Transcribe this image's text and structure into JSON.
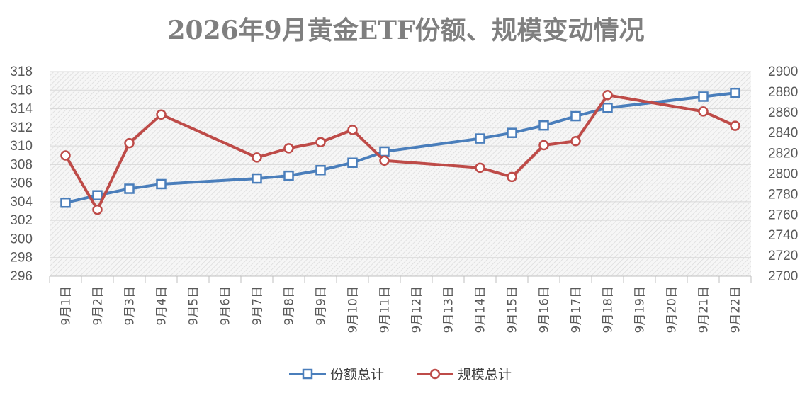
{
  "chart_data": {
    "type": "line",
    "title": "2026年9月黄金ETF份额、规模变动情况",
    "categories": [
      "9月1日",
      "9月2日",
      "9月3日",
      "9月4日",
      "9月5日",
      "9月6日",
      "9月7日",
      "9月8日",
      "9月9日",
      "9月10日",
      "9月11日",
      "9月12日",
      "9月13日",
      "9月14日",
      "9月15日",
      "9月16日",
      "9月17日",
      "9月18日",
      "9月19日",
      "9月20日",
      "9月21日",
      "9月22日"
    ],
    "y_left": {
      "min": 296,
      "max": 318,
      "step": 2,
      "ticks": [
        "318",
        "316",
        "314",
        "312",
        "310",
        "308",
        "306",
        "304",
        "302",
        "300",
        "298",
        "296"
      ]
    },
    "y_right": {
      "min": 2700,
      "max": 2900,
      "step": 20,
      "ticks": [
        "2900",
        "2880",
        "2860",
        "2840",
        "2820",
        "2800",
        "2780",
        "2760",
        "2740",
        "2720",
        "2700"
      ]
    },
    "grid": true,
    "legend_position": "bottom",
    "series": [
      {
        "name": "份额总计",
        "axis": "left",
        "color": "#4a7ebb",
        "marker": "square",
        "points": [
          {
            "x": "9月1日",
            "y": 303.9
          },
          {
            "x": "9月2日",
            "y": 304.7
          },
          {
            "x": "9月3日",
            "y": 305.4
          },
          {
            "x": "9月4日",
            "y": 305.9
          },
          {
            "x": "9月7日",
            "y": 306.5
          },
          {
            "x": "9月8日",
            "y": 306.8
          },
          {
            "x": "9月9日",
            "y": 307.4
          },
          {
            "x": "9月10日",
            "y": 308.2
          },
          {
            "x": "9月11日",
            "y": 309.4
          },
          {
            "x": "9月14日",
            "y": 310.8
          },
          {
            "x": "9月15日",
            "y": 311.4
          },
          {
            "x": "9月16日",
            "y": 312.2
          },
          {
            "x": "9月17日",
            "y": 313.2
          },
          {
            "x": "9月18日",
            "y": 314.1
          },
          {
            "x": "9月21日",
            "y": 315.3
          },
          {
            "x": "9月22日",
            "y": 315.7
          }
        ]
      },
      {
        "name": "规模总计",
        "axis": "right",
        "color": "#be4b48",
        "marker": "circle",
        "points": [
          {
            "x": "9月1日",
            "y": 2818
          },
          {
            "x": "9月2日",
            "y": 2765
          },
          {
            "x": "9月3日",
            "y": 2830
          },
          {
            "x": "9月4日",
            "y": 2858
          },
          {
            "x": "9月7日",
            "y": 2816
          },
          {
            "x": "9月8日",
            "y": 2825
          },
          {
            "x": "9月9日",
            "y": 2831
          },
          {
            "x": "9月10日",
            "y": 2843
          },
          {
            "x": "9月11日",
            "y": 2813
          },
          {
            "x": "9月14日",
            "y": 2806
          },
          {
            "x": "9月15日",
            "y": 2797
          },
          {
            "x": "9月16日",
            "y": 2828
          },
          {
            "x": "9月17日",
            "y": 2832
          },
          {
            "x": "9月18日",
            "y": 2877
          },
          {
            "x": "9月21日",
            "y": 2861
          },
          {
            "x": "9月22日",
            "y": 2847
          }
        ]
      }
    ]
  }
}
